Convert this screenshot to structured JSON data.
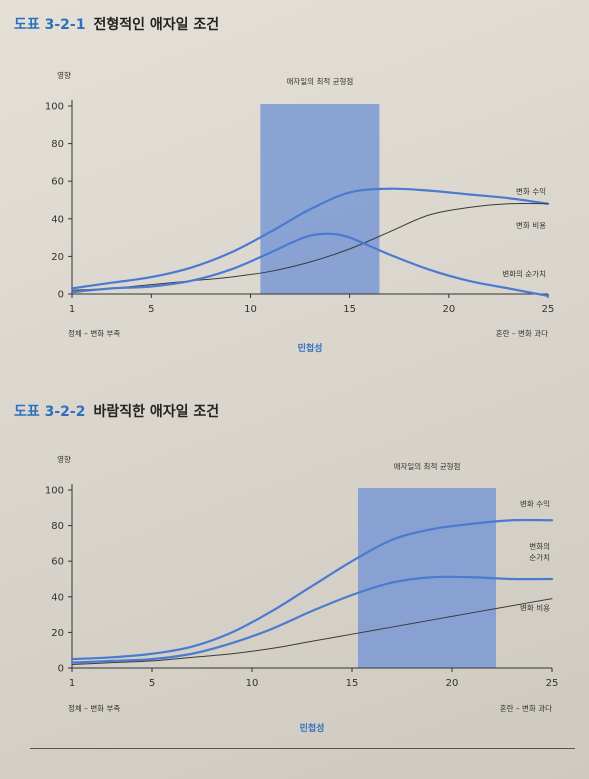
{
  "figures": [
    {
      "number": "도표 3-2-1",
      "title": "전형적인 애자일 조건"
    },
    {
      "number": "도표 3-2-2",
      "title": "바람직한 애자일 조건"
    }
  ],
  "chart_data": [
    {
      "type": "line",
      "ylabel": "영향",
      "xlabel": "민첩성",
      "x_left_note": "정체 – 변화 부족",
      "x_right_note": "혼란 – 변화 과다",
      "band_label": "애자일의 최적 균형점",
      "band": [
        10.5,
        16.5
      ],
      "xlim": [
        1,
        25
      ],
      "ylim": [
        0,
        100
      ],
      "x_ticks": [
        1,
        5,
        10,
        15,
        20,
        25
      ],
      "y_ticks": [
        0,
        20,
        40,
        60,
        80,
        100
      ],
      "color_band": "#7a99d4",
      "series": [
        {
          "name": "변화 수익",
          "color": "#4a7bd0",
          "width": 2.2,
          "x": [
            1,
            3,
            5,
            7,
            9,
            11,
            13,
            15,
            17,
            19,
            21,
            23,
            25
          ],
          "y": [
            3,
            6,
            9,
            14,
            22,
            33,
            45,
            54,
            56,
            55,
            53,
            51,
            48
          ]
        },
        {
          "name": "변화 비용",
          "color": "#3a3a3a",
          "width": 1,
          "x": [
            1,
            3,
            5,
            7,
            9,
            11,
            13,
            15,
            17,
            19,
            21,
            23,
            25
          ],
          "y": [
            2,
            3,
            5,
            7,
            9,
            12,
            17,
            24,
            33,
            42,
            46,
            48,
            48
          ]
        },
        {
          "name": "변화의 순가치",
          "color": "#4a7bd0",
          "width": 2.2,
          "x": [
            1,
            3,
            5,
            7,
            9,
            11,
            12,
            13,
            14,
            15,
            17,
            19,
            21,
            23,
            25
          ],
          "y": [
            1,
            3,
            4,
            7,
            13,
            22,
            27,
            31,
            32,
            30,
            21,
            13,
            7,
            3,
            -1
          ]
        }
      ]
    },
    {
      "type": "line",
      "ylabel": "영향",
      "xlabel": "민첩성",
      "x_left_note": "정체 – 변화 부족",
      "x_right_note": "혼란 – 변화 과다",
      "band_label": "애자일의 최적 균형점",
      "band": [
        15.3,
        22.2
      ],
      "xlim": [
        1,
        25
      ],
      "ylim": [
        0,
        100
      ],
      "x_ticks": [
        1,
        5,
        10,
        15,
        20,
        25
      ],
      "y_ticks": [
        0,
        20,
        40,
        60,
        80,
        100
      ],
      "color_band": "#7a99d4",
      "series": [
        {
          "name": "변화 수익",
          "color": "#4a7bd0",
          "width": 2.2,
          "x": [
            1,
            3,
            5,
            7,
            9,
            11,
            13,
            15,
            17,
            19,
            21,
            23,
            25
          ],
          "y": [
            5,
            6,
            8,
            12,
            20,
            32,
            46,
            60,
            72,
            78,
            81,
            83,
            83
          ]
        },
        {
          "name": "변화의 순가치",
          "color": "#4a7bd0",
          "width": 2.2,
          "x": [
            1,
            3,
            5,
            7,
            9,
            11,
            13,
            15,
            17,
            19,
            21,
            23,
            25
          ],
          "y": [
            3,
            4,
            5,
            8,
            14,
            22,
            32,
            41,
            48,
            51,
            51,
            50,
            50
          ]
        },
        {
          "name": "변화 비용",
          "color": "#3a3a3a",
          "width": 1,
          "x": [
            1,
            3,
            5,
            7,
            9,
            11,
            13,
            15,
            17,
            19,
            21,
            23,
            25
          ],
          "y": [
            2,
            3,
            4,
            6,
            8,
            11,
            15,
            19,
            23,
            27,
            31,
            35,
            39
          ]
        }
      ]
    }
  ]
}
